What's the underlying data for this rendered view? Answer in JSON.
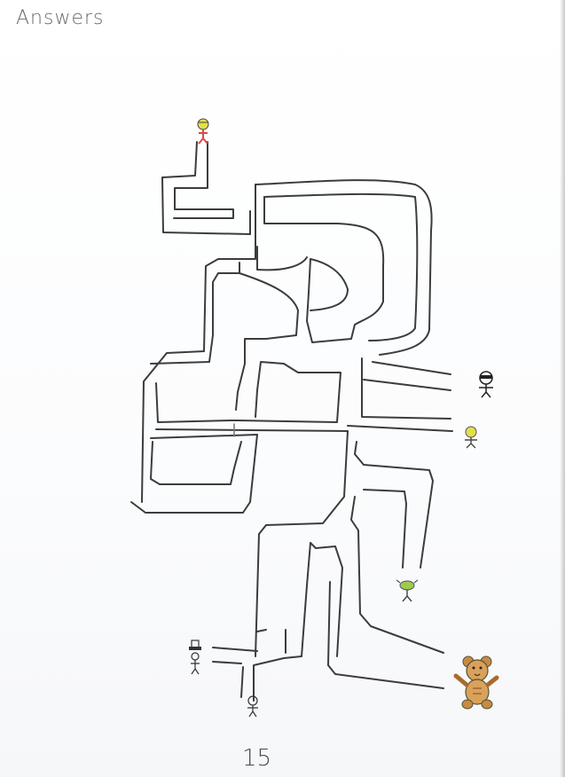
{
  "page": {
    "heading": "Answers",
    "page_number": "15"
  },
  "colors": {
    "paper": "#ffffff",
    "ink": "#3c3c3c",
    "pencil": "#6a6a6a",
    "bear_fill": "#d9a15a",
    "yellow_character": "#e3e04a",
    "green_character": "#9ccc4a",
    "red_character": "#d84b4b"
  },
  "maze": {
    "characters": [
      {
        "name": "start-character",
        "icon": "yellow-haired-figure-icon"
      },
      {
        "name": "ninja-character",
        "icon": "masked-figure-icon"
      },
      {
        "name": "yellow-round-character",
        "icon": "yellow-head-figure-icon"
      },
      {
        "name": "alien-character",
        "icon": "green-alien-figure-icon"
      },
      {
        "name": "hat-character",
        "icon": "top-hat-figure-icon"
      },
      {
        "name": "stick-character",
        "icon": "stick-figure-icon"
      },
      {
        "name": "teddy-bear",
        "icon": "teddy-bear-icon"
      }
    ]
  }
}
